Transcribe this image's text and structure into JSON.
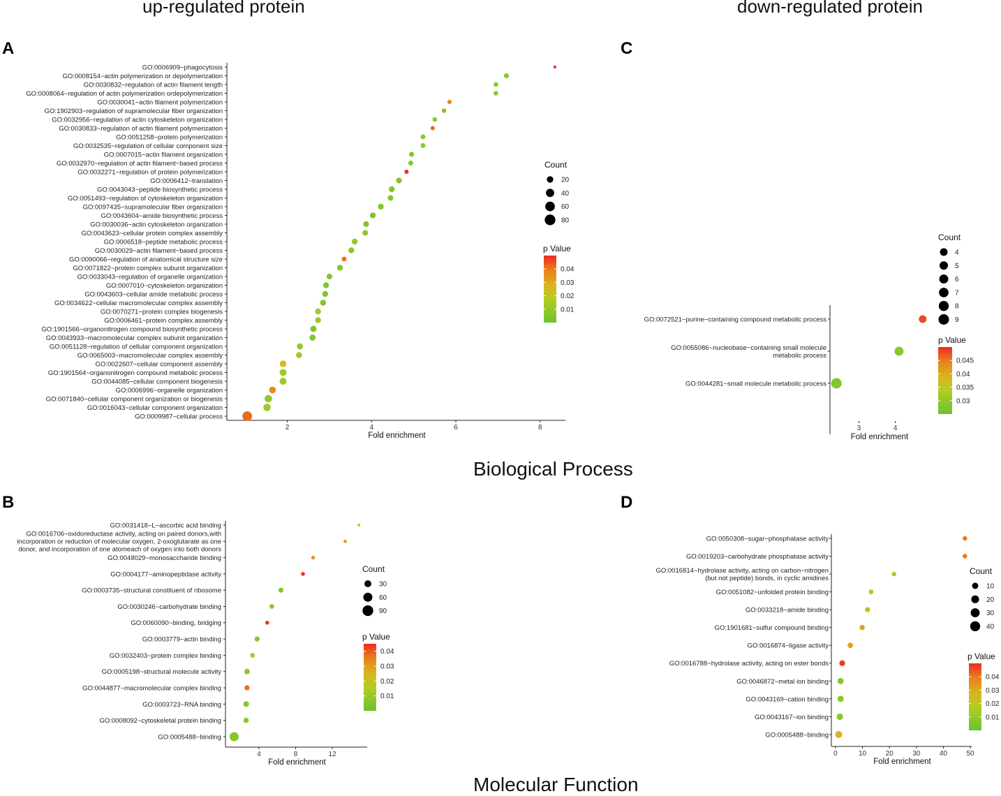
{
  "headings": {
    "up": "up-regulated protein",
    "down": "down-regulated protein",
    "bp": "Biological Process",
    "mf": "Molecular Function"
  },
  "colors": {
    "low": "#6ac330",
    "mid": "#c4cc1e",
    "midhigh": "#e5911d",
    "high": "#ee2a24"
  },
  "chart_data": [
    {
      "id": "A",
      "type": "scatter",
      "panel_label": "A",
      "xlabel": "Fold enrichment",
      "xlim": [
        0.6,
        8.6
      ],
      "xticks": [
        2,
        4,
        6,
        8
      ],
      "count_domain": [
        5,
        90
      ],
      "pvalue_domain": [
        0,
        0.05
      ],
      "legend": {
        "count_title": "Count",
        "count_values": [
          20,
          40,
          60,
          80
        ],
        "p_title": "p Value",
        "p_ticks": [
          0.04,
          0.03,
          0.02,
          0.01
        ]
      },
      "terms": [
        "GO:0006909~phagocytosis",
        "GO:0008154~actin polymerization or depolymerization",
        "GO:0030832~regulation of actin filament length",
        "GO:0008064~regulation of actin polymerization ordepolymerization",
        "GO:0030041~actin filament polymerization",
        "GO:1902903~regulation of supramolecular fiber organization",
        "GO:0032956~regulation of actin cytoskeleton organization",
        "GO:0030833~regulation of actin filament polymerization",
        "GO:0051258~protein polymerization",
        "GO:0032535~regulation of cellular component size",
        "GO:0007015~actin filament organization",
        "GO:0032970~regulation of actin filament−based process",
        "GO:0032271~regulation of protein polymerization",
        "GO:0006412~translation",
        "GO:0043043~peptide biosynthetic process",
        "GO:0051493~regulation of cytoskeleton organization",
        "GO:0097435~supramolecular fiber organization",
        "GO:0043604~amide biosynthetic process",
        "GO:0030036~actin cytoskeleton organization",
        "GO:0043623~cellular protein complex assembly",
        "GO:0006518~peptide metabolic process",
        "GO:0030029~actin filament−based process",
        "GO:0090066~regulation of anatomical structure size",
        "GO:0071822~protein complex subunit organization",
        "GO:0033043~regulation of organelle organization",
        "GO:0007010~cytoskeleton organization",
        "GO:0043603~cellular amide metabolic process",
        "GO:0034622~cellular macromolecular complex assembly",
        "GO:0070271~protein complex biogenesis",
        "GO:0006461~protein complex assembly",
        "GO:1901566~organonitrogen compound biosynthetic process",
        "GO:0043933~macromolecular complex subunit organization",
        "GO:0051128~regulation of cellular component organization",
        "GO:0065003~macromolecular complex assembly",
        "GO:0022607~cellular component assembly",
        "GO:1901564~organonitrogen compound metabolic process",
        "GO:0044085~cellular component biogenesis",
        "GO:0006996~organelle organization",
        "GO:0071840~cellular component organization or biogenesis",
        "GO:0016043~cellular component organization",
        "GO:0009987~cellular process"
      ],
      "fold": [
        8.35,
        7.2,
        6.95,
        6.95,
        5.85,
        5.72,
        5.5,
        5.45,
        5.22,
        5.22,
        4.95,
        4.93,
        4.83,
        4.65,
        4.48,
        4.45,
        4.22,
        4.03,
        3.87,
        3.85,
        3.6,
        3.52,
        3.35,
        3.25,
        3.0,
        2.92,
        2.9,
        2.85,
        2.73,
        2.73,
        2.62,
        2.6,
        2.3,
        2.28,
        1.9,
        1.9,
        1.9,
        1.65,
        1.55,
        1.52,
        1.05
      ],
      "count": [
        5,
        10,
        8,
        8,
        7,
        8,
        8,
        7,
        9,
        9,
        10,
        10,
        7,
        14,
        15,
        13,
        15,
        15,
        14,
        13,
        15,
        15,
        9,
        15,
        13,
        15,
        15,
        16,
        15,
        15,
        18,
        17,
        17,
        16,
        21,
        25,
        25,
        23,
        30,
        29,
        60
      ],
      "pvalue": [
        0.049,
        0.008,
        0.007,
        0.007,
        0.038,
        0.007,
        0.008,
        0.042,
        0.008,
        0.008,
        0.006,
        0.006,
        0.049,
        0.006,
        0.006,
        0.006,
        0.006,
        0.005,
        0.005,
        0.008,
        0.01,
        0.008,
        0.041,
        0.006,
        0.006,
        0.005,
        0.005,
        0.005,
        0.012,
        0.012,
        0.005,
        0.005,
        0.01,
        0.012,
        0.027,
        0.012,
        0.012,
        0.037,
        0.01,
        0.012,
        0.042
      ]
    },
    {
      "id": "B",
      "type": "scatter",
      "panel_label": "B",
      "xlabel": "Fold enrichment",
      "xlim": [
        0.5,
        15.8
      ],
      "xticks": [
        4,
        8,
        12
      ],
      "count_domain": [
        3,
        100
      ],
      "pvalue_domain": [
        0,
        0.045
      ],
      "legend": {
        "count_title": "Count",
        "count_values": [
          30,
          60,
          90
        ],
        "p_title": "p Value",
        "p_ticks": [
          0.04,
          0.03,
          0.02,
          0.01
        ]
      },
      "terms": [
        "GO:0031418~L−ascorbic acid binding",
        "GO:0016706~oxidoreductase activity, acting on paired donors,with|incorporation or reduction of molecular oxygen, 2-oxoglutarate as one|donor, and incorporation of one atomeach of oxygen into both donors",
        "GO:0048029~monosaccharide binding",
        "GO:0004177~aminopeptidase activity",
        "GO:0003735~structural constituent of ribosome",
        "GO:0030246~carbohydrate binding",
        "GO:0060090~binding, bridging",
        "GO:0003779~actin binding",
        "GO:0032403~protein complex binding",
        "GO:0005198~structural molecule activity",
        "GO:0044877~macromolecular complex binding",
        "GO:0003723~RNA binding",
        "GO:0008092~cytoskeletal protein binding",
        "GO:0005488~binding"
      ],
      "fold": [
        14.9,
        13.4,
        9.9,
        8.8,
        6.4,
        5.4,
        4.9,
        3.8,
        3.3,
        2.7,
        2.7,
        2.6,
        2.6,
        1.3
      ],
      "count": [
        4,
        5,
        6,
        7,
        13,
        11,
        7,
        14,
        11,
        17,
        14,
        18,
        15,
        60
      ],
      "pvalue": [
        0.018,
        0.03,
        0.033,
        0.044,
        0.005,
        0.007,
        0.044,
        0.007,
        0.012,
        0.008,
        0.037,
        0.006,
        0.008,
        0.006
      ]
    },
    {
      "id": "C",
      "type": "scatter",
      "panel_label": "C",
      "xlabel": "Fold enrichment",
      "xlim": [
        2.28,
        4.85
      ],
      "xticks": [
        3,
        4
      ],
      "count_domain": [
        2,
        9
      ],
      "pvalue_domain": [
        0.025,
        0.05
      ],
      "legend": {
        "count_title": "Count",
        "count_values": [
          4,
          5,
          6,
          7,
          8,
          9
        ],
        "p_title": "p Value",
        "p_ticks": [
          0.045,
          0.04,
          0.035,
          0.03
        ]
      },
      "terms": [
        "GO:0072521~purine−containing compound metabolic process",
        "GO:0055086~nucleobase−containing small molecule|metabolic process",
        "GO:0044281~small molecule metabolic process"
      ],
      "fold": [
        4.75,
        4.1,
        2.38
      ],
      "count": [
        4,
        6,
        9
      ],
      "pvalue": [
        0.048,
        0.029,
        0.028
      ]
    },
    {
      "id": "D",
      "type": "scatter",
      "panel_label": "D",
      "xlabel": "Fold enrichment",
      "xlim": [
        -1,
        50.5
      ],
      "xticks": [
        0,
        10,
        20,
        30,
        40,
        50
      ],
      "count_domain": [
        0,
        45
      ],
      "pvalue_domain": [
        0,
        0.05
      ],
      "legend": {
        "count_title": "Count",
        "count_values": [
          10,
          20,
          30,
          40
        ],
        "p_title": "p Value",
        "p_ticks": [
          0.04,
          0.03,
          0.02,
          0.01
        ]
      },
      "terms": [
        "GO:0050308~sugar−phosphatase activity",
        "GO:0019203~carbohydrate phosphatase activity",
        "GO:0016814~hydrolase activity, acting on carbon−nitrogen|(but not peptide) bonds, in cyclic amidines",
        "GO:0051082~unfolded protein binding",
        "GO:0033218~amide binding",
        "GO:1901681~sulfur compound binding",
        "GO:0016874~ligase activity",
        "GO:0016788~hydrolase activity, acting on ester bonds",
        "GO:0046872~metal ion binding",
        "GO:0043169~cation binding",
        "GO:0043167~ion binding",
        "GO:0005488~binding"
      ],
      "fold": [
        48,
        48,
        21.7,
        13.2,
        11.9,
        9.9,
        5.5,
        2.5,
        1.9,
        1.9,
        1.6,
        1.2
      ],
      "count": [
        3,
        3,
        3,
        4,
        5,
        5,
        6,
        8,
        10,
        10,
        11,
        14
      ],
      "pvalue": [
        0.04,
        0.04,
        0.015,
        0.018,
        0.022,
        0.032,
        0.032,
        0.048,
        0.008,
        0.008,
        0.008,
        0.028
      ]
    }
  ]
}
